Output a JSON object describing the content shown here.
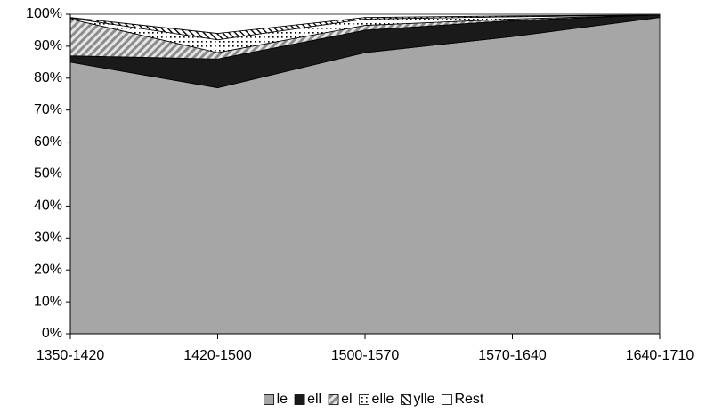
{
  "chart_data": {
    "type": "stacked_area",
    "categories": [
      "1350-1420",
      "1420-1500",
      "1500-1570",
      "1570-1640",
      "1640-1710"
    ],
    "series": [
      {
        "name": "le",
        "color": "#a6a6a6",
        "values": [
          85,
          77,
          88,
          93,
          99
        ]
      },
      {
        "name": "ell",
        "color": "#1a1a1a",
        "values": [
          2,
          9,
          7,
          5,
          0.8
        ]
      },
      {
        "name": "el",
        "color": "#bfbfbf",
        "values": [
          11.5,
          2,
          1.5,
          0.5,
          0
        ]
      },
      {
        "name": "elle",
        "color": "#ffffff",
        "values": [
          0.3,
          4,
          2,
          0.7,
          0
        ]
      },
      {
        "name": "ylle",
        "color": "#d9d9d9",
        "values": [
          0.2,
          2,
          0.5,
          0.3,
          0
        ]
      },
      {
        "name": "Rest",
        "color": "#ffffff",
        "values": [
          1,
          6,
          1,
          0.5,
          0.2
        ]
      }
    ],
    "ylim": [
      0,
      100
    ],
    "yticks": [
      {
        "value": 0,
        "label": "0%"
      },
      {
        "value": 10,
        "label": "10%"
      },
      {
        "value": 20,
        "label": "20%"
      },
      {
        "value": 30,
        "label": "30%"
      },
      {
        "value": 40,
        "label": "40%"
      },
      {
        "value": 50,
        "label": "50%"
      },
      {
        "value": 60,
        "label": "60%"
      },
      {
        "value": 70,
        "label": "70%"
      },
      {
        "value": 80,
        "label": "80%"
      },
      {
        "value": 90,
        "label": "90%"
      },
      {
        "value": 100,
        "label": "100%"
      }
    ],
    "legend": "bottom"
  }
}
